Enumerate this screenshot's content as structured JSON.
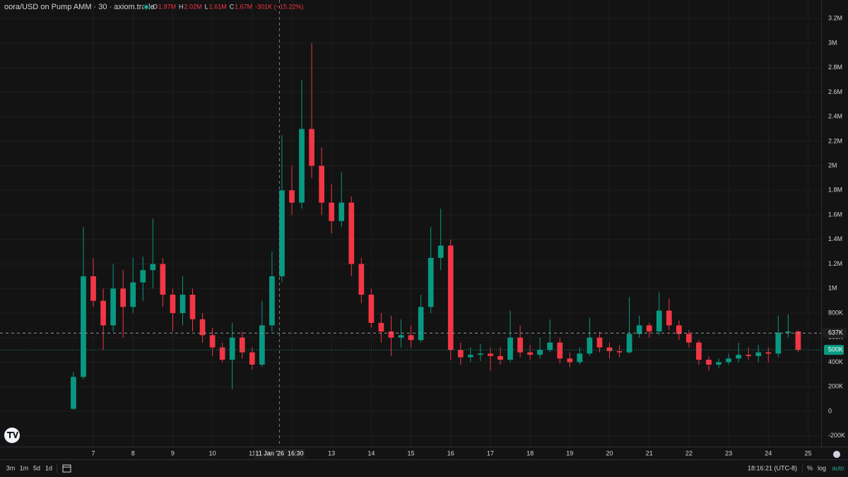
{
  "chart_data": {
    "type": "candlestick",
    "title": "oora/USD on Pump AMM · 30 · axiom.trade",
    "ohlc_legend": [
      {
        "label": "O",
        "value": "1.97M"
      },
      {
        "label": "H",
        "value": "2.02M"
      },
      {
        "label": "L",
        "value": "1.61M"
      },
      {
        "label": "C",
        "value": "1.67M"
      }
    ],
    "change": "-301K (−15.22%)",
    "up_color": "#089981",
    "down_color": "#f23645",
    "grid": true,
    "x": [
      6.5,
      6.75,
      7,
      7.25,
      7.5,
      7.75,
      8,
      8.25,
      8.5,
      8.75,
      9,
      9.25,
      9.5,
      9.75,
      10,
      10.25,
      10.5,
      10.75,
      11,
      11.25,
      11.5,
      11.75,
      12,
      12.25,
      12.5,
      12.75,
      13,
      13.25,
      13.5,
      13.75,
      14,
      14.25,
      14.5,
      14.75,
      15,
      15.25,
      15.5,
      15.75,
      16,
      16.25,
      16.5,
      16.75,
      17,
      17.25,
      17.5,
      17.75,
      18,
      18.25,
      18.5,
      18.75,
      19,
      19.25,
      19.5,
      19.75,
      20,
      20.25,
      20.5,
      20.75,
      21,
      21.25,
      21.5,
      21.75,
      22,
      22.25,
      22.5,
      22.75,
      23,
      23.25,
      23.5,
      23.75,
      24,
      24.25,
      24.5,
      24.75
    ],
    "open": [
      20000,
      280000,
      1100000,
      900000,
      700000,
      1000000,
      850000,
      1050000,
      1150000,
      1200000,
      950000,
      800000,
      950000,
      750000,
      620000,
      520000,
      420000,
      600000,
      480000,
      380000,
      700000,
      1100000,
      1800000,
      1700000,
      2300000,
      2000000,
      1700000,
      1550000,
      1700000,
      1200000,
      950000,
      720000,
      650000,
      600000,
      620000,
      580000,
      850000,
      1250000,
      1350000,
      500000,
      440000,
      460000,
      470000,
      450000,
      420000,
      600000,
      480000,
      460000,
      500000,
      560000,
      430000,
      400000,
      470000,
      600000,
      520000,
      490000,
      480000,
      630000,
      700000,
      650000,
      820000,
      700000,
      630000,
      560000,
      420000,
      380000,
      400000,
      430000,
      460000,
      450000,
      480000,
      470000,
      640000,
      650000
    ],
    "high": [
      320000,
      1500000,
      1250000,
      1000000,
      1200000,
      1150000,
      1250000,
      1260000,
      1570000,
      1250000,
      1000000,
      1100000,
      1000000,
      800000,
      680000,
      560000,
      720000,
      650000,
      520000,
      900000,
      1300000,
      2250000,
      2000000,
      2700000,
      3000000,
      2150000,
      1850000,
      1950000,
      1750000,
      1250000,
      1000000,
      800000,
      780000,
      750000,
      700000,
      950000,
      1500000,
      1650000,
      1400000,
      560000,
      520000,
      550000,
      520000,
      520000,
      820000,
      700000,
      540000,
      600000,
      750000,
      600000,
      480000,
      520000,
      760000,
      650000,
      560000,
      540000,
      930000,
      780000,
      720000,
      970000,
      920000,
      740000,
      660000,
      580000,
      450000,
      430000,
      470000,
      560000,
      520000,
      540000,
      520000,
      780000,
      790000,
      660000
    ],
    "low": [
      10000,
      260000,
      850000,
      500000,
      650000,
      600000,
      800000,
      900000,
      1000000,
      850000,
      650000,
      700000,
      650000,
      560000,
      450000,
      400000,
      180000,
      430000,
      340000,
      360000,
      650000,
      1050000,
      1600000,
      1650000,
      1900000,
      1600000,
      1450000,
      1500000,
      1100000,
      880000,
      680000,
      560000,
      450000,
      520000,
      520000,
      560000,
      800000,
      1150000,
      420000,
      380000,
      400000,
      410000,
      330000,
      380000,
      400000,
      440000,
      420000,
      430000,
      480000,
      390000,
      360000,
      380000,
      450000,
      480000,
      430000,
      440000,
      470000,
      600000,
      600000,
      620000,
      660000,
      580000,
      520000,
      380000,
      330000,
      350000,
      380000,
      400000,
      420000,
      400000,
      400000,
      440000,
      600000,
      480000
    ],
    "close": [
      280000,
      1100000,
      900000,
      700000,
      1000000,
      850000,
      1050000,
      1150000,
      1200000,
      950000,
      800000,
      950000,
      750000,
      620000,
      520000,
      420000,
      600000,
      480000,
      380000,
      700000,
      1100000,
      1800000,
      1700000,
      2300000,
      2000000,
      1700000,
      1550000,
      1700000,
      1200000,
      950000,
      720000,
      650000,
      600000,
      620000,
      580000,
      850000,
      1250000,
      1350000,
      500000,
      440000,
      460000,
      470000,
      450000,
      420000,
      600000,
      480000,
      460000,
      500000,
      560000,
      430000,
      400000,
      470000,
      600000,
      520000,
      490000,
      480000,
      630000,
      700000,
      650000,
      820000,
      700000,
      630000,
      560000,
      420000,
      380000,
      400000,
      430000,
      460000,
      450000,
      480000,
      470000,
      640000,
      650000,
      500000
    ],
    "xlim": [
      4.65,
      25.33
    ],
    "xticks": [
      7,
      8,
      9,
      10,
      11,
      12,
      13,
      14,
      15,
      16,
      17,
      18,
      19,
      20,
      21,
      22,
      23,
      24,
      25
    ],
    "ylim": [
      -288000,
      3351000
    ],
    "yticks": [
      {
        "value": -200000,
        "label": "-200K"
      },
      0,
      {
        "value": 200000,
        "label": "200K"
      },
      {
        "value": 400000,
        "label": "400K"
      },
      {
        "value": 600000,
        "label": "600K"
      },
      {
        "value": 800000,
        "label": "800K"
      },
      {
        "value": 1000000,
        "label": "1M"
      },
      {
        "value": 1200000,
        "label": "1.2M"
      },
      {
        "value": 1400000,
        "label": "1.4M"
      },
      {
        "value": 1600000,
        "label": "1.6M"
      },
      {
        "value": 1800000,
        "label": "1.8M"
      },
      {
        "value": 2000000,
        "label": "2M"
      },
      {
        "value": 2200000,
        "label": "2.2M"
      },
      {
        "value": 2400000,
        "label": "2.4M"
      },
      {
        "value": 2600000,
        "label": "2.6M"
      },
      {
        "value": 2800000,
        "label": "2.8M"
      },
      {
        "value": 3000000,
        "label": "3M"
      },
      {
        "value": 3200000,
        "label": "3.2M"
      }
    ],
    "crosshair": {
      "x": {
        "value": 11.6875,
        "label": "11 Jan '26  16:30"
      },
      "y": {
        "value": 637000,
        "label": "637K"
      }
    },
    "last_price": {
      "value": 500000,
      "label": "500K"
    }
  },
  "toolbar": {
    "ranges": [
      "3m",
      "1m",
      "5d",
      "1d"
    ],
    "clock": "18:16:21 (UTC-8)",
    "options": [
      "%",
      "log",
      "auto"
    ]
  }
}
